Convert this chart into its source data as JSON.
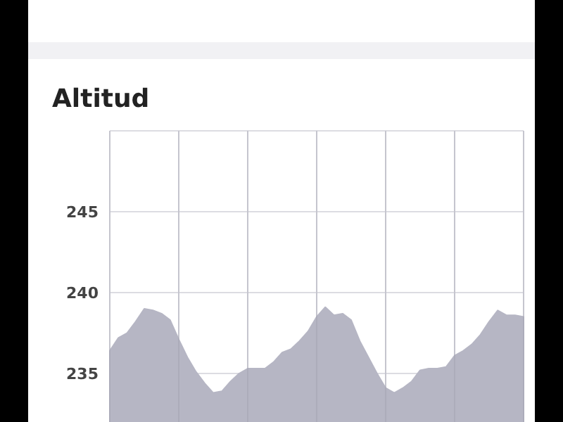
{
  "chart_data": {
    "type": "area",
    "title": "Altitud",
    "categories": [
      null,
      null,
      null,
      null,
      null,
      null,
      null,
      null,
      null,
      null,
      null,
      null,
      null,
      null,
      null,
      null,
      null,
      null,
      null,
      null,
      null,
      null,
      null,
      null,
      null,
      null,
      null,
      null,
      null,
      null,
      null,
      null,
      null,
      null,
      null,
      null,
      null,
      null,
      null,
      null,
      null,
      null,
      null,
      null,
      null,
      null,
      null,
      null,
      null
    ],
    "series": [
      {
        "color": "#b6b6c4",
        "values": [
          236.4,
          237.2,
          237.5,
          238.2,
          239.0,
          238.9,
          238.7,
          238.3,
          237.1,
          236.0,
          235.1,
          234.4,
          233.8,
          233.9,
          234.5,
          235.0,
          235.3,
          235.3,
          235.3,
          235.7,
          236.3,
          236.5,
          237.0,
          237.6,
          238.5,
          239.1,
          238.6,
          238.7,
          238.3,
          237.0,
          236.0,
          235.0,
          234.1,
          233.8,
          234.1,
          234.5,
          235.2,
          235.3,
          235.3,
          235.4,
          236.1,
          236.4,
          236.8,
          237.4,
          238.2,
          238.9,
          238.6,
          238.6,
          238.5
        ]
      }
    ],
    "ylim": [
      232,
      250
    ],
    "yticks": [
      235,
      240,
      245,
      {
        "value": 250,
        "label": null
      }
    ],
    "tick_labels": "y",
    "grid": true
  }
}
